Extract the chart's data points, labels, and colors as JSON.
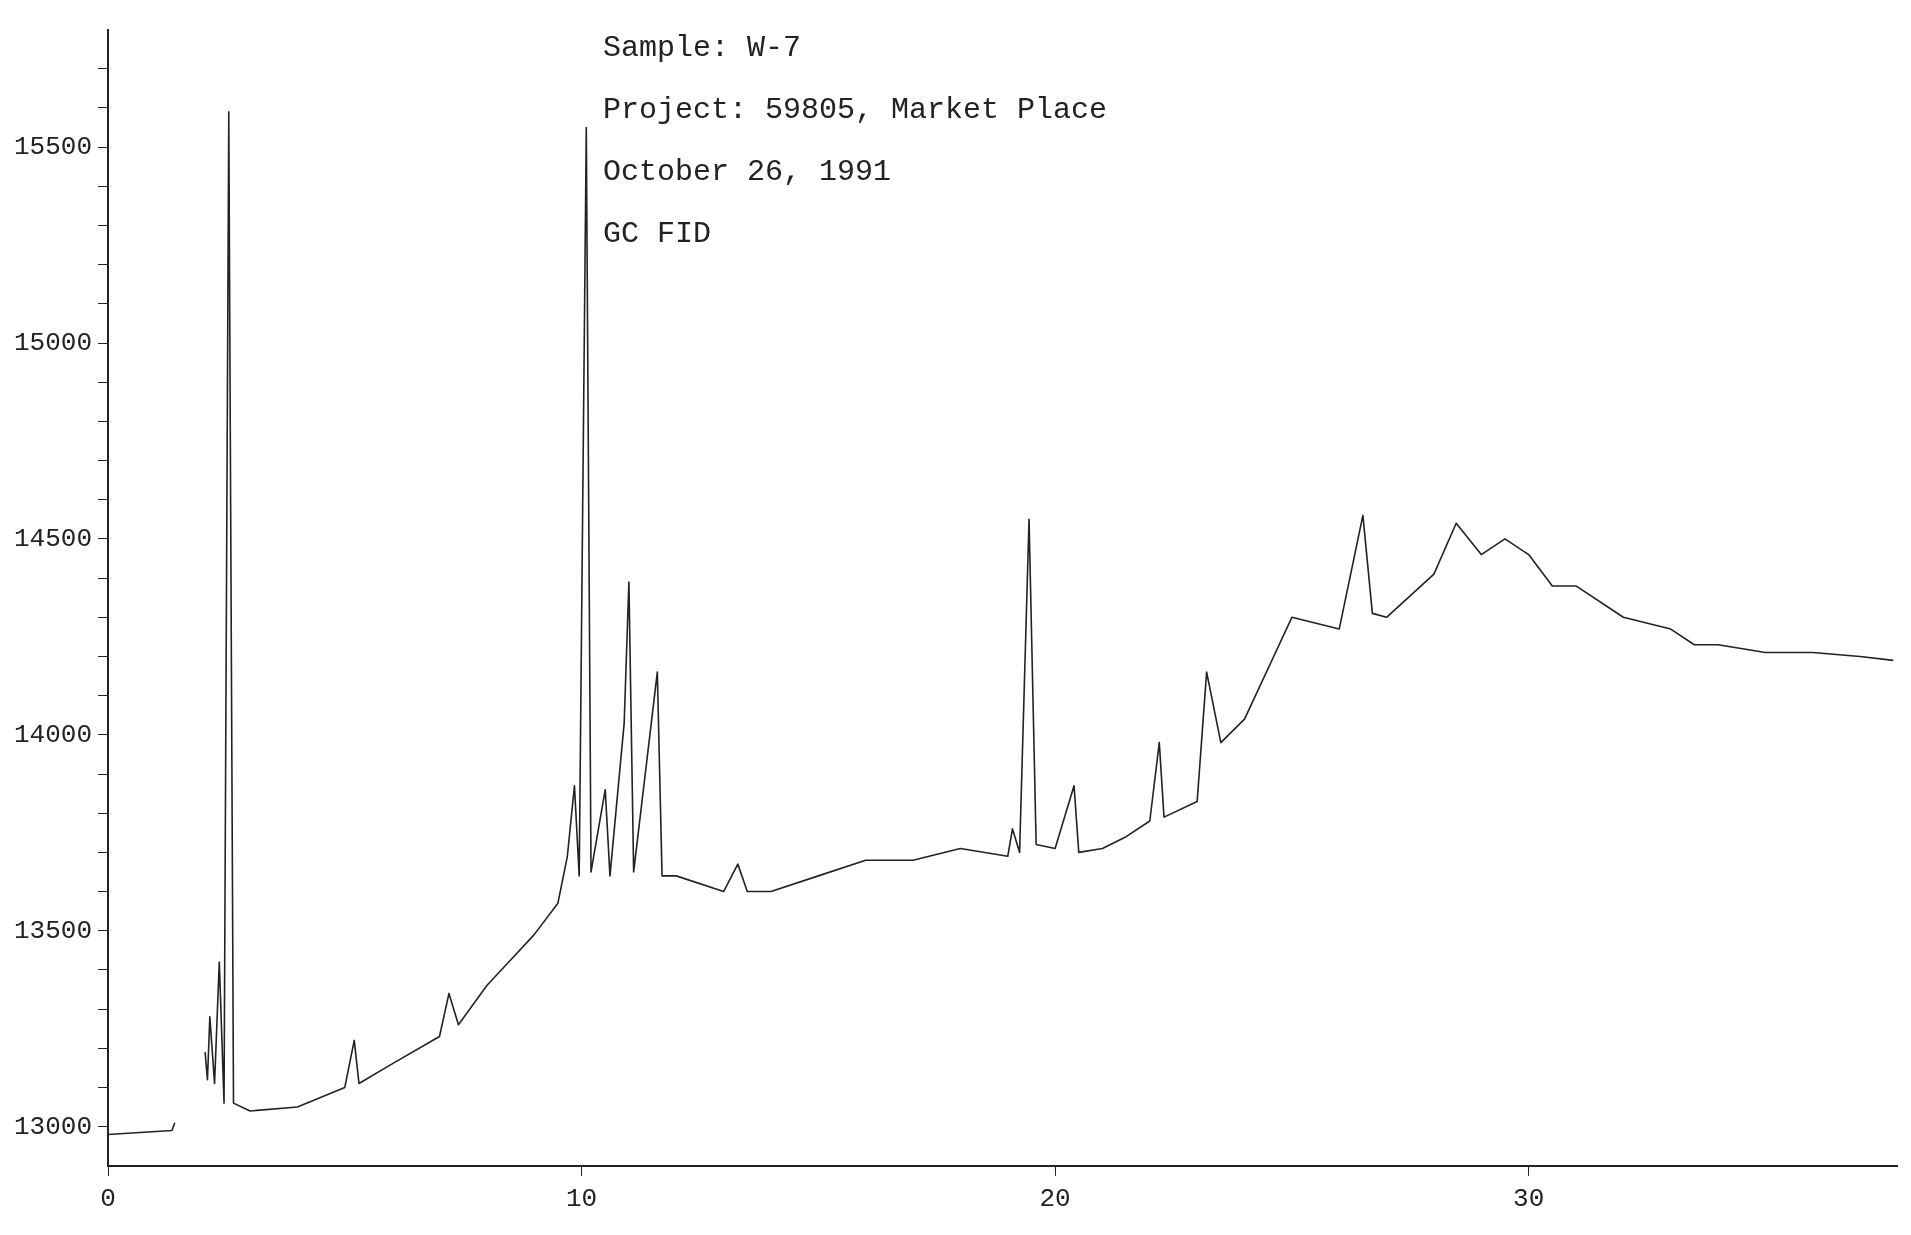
{
  "chart_data": {
    "type": "line",
    "annotations": [
      "Sample: W-7",
      "Project: 59805, Market Place",
      "October 26, 1991",
      "GC FID"
    ],
    "series": [
      {
        "color": "#222222",
        "x": [
          0,
          1.35,
          1.41,
          1.6,
          1.9,
          1.95,
          2.0,
          2.05,
          2.1,
          2.15,
          2.25,
          2.35,
          2.45,
          2.55,
          2.65,
          3,
          4,
          5,
          5.2,
          5.3,
          6,
          7,
          7.2,
          7.4,
          8,
          9,
          9.5,
          9.7,
          9.85,
          9.95,
          10.1,
          10.2,
          10.5,
          10.6,
          10.9,
          11.0,
          11.1,
          11.6,
          11.7,
          12,
          13,
          13.3,
          13.5,
          14,
          15,
          16,
          17,
          18,
          19,
          19.1,
          19.25,
          19.45,
          19.6,
          20,
          20.4,
          20.5,
          21,
          21.5,
          22,
          22.2,
          22.3,
          23,
          23.2,
          23.5,
          24,
          25,
          26,
          26.5,
          26.7,
          27,
          28,
          28.47,
          29,
          29.5,
          30,
          30.5,
          31,
          32,
          33,
          33.5,
          34,
          35,
          36,
          37,
          37.7
        ],
        "values": [
          12980,
          12990,
          13010,
          null,
          null,
          null,
          null,
          13190,
          13120,
          13280,
          13110,
          13420,
          13060,
          15590,
          13060,
          13040,
          13050,
          13100,
          13220,
          13110,
          13160,
          13230,
          13340,
          13260,
          13360,
          13490,
          13570,
          13690,
          13870,
          13640,
          15550,
          13650,
          13860,
          13640,
          14030,
          14390,
          13650,
          14160,
          13640,
          13640,
          13600,
          13670,
          13600,
          13600,
          13640,
          13680,
          13680,
          13710,
          13690,
          13760,
          13700,
          14550,
          13720,
          13710,
          13870,
          13700,
          13710,
          13740,
          13780,
          13980,
          13790,
          13830,
          14160,
          13980,
          14040,
          14300,
          14270,
          14560,
          14310,
          14300,
          14410,
          14540,
          14460,
          14500,
          14460,
          14380,
          14380,
          14300,
          14270,
          14230,
          14230,
          14210,
          14210,
          14200,
          14190
        ]
      }
    ],
    "xlim": [
      0,
      37.8
    ],
    "xticks": [
      0,
      10,
      20,
      30
    ],
    "ylim": [
      12900,
      15800
    ],
    "yticks": [
      13000,
      {
        "value": 13100,
        "label": null
      },
      {
        "value": 13200,
        "label": null
      },
      {
        "value": 13300,
        "label": null
      },
      {
        "value": 13400,
        "label": null
      },
      13500,
      {
        "value": 13600,
        "label": null
      },
      {
        "value": 13700,
        "label": null
      },
      {
        "value": 13800,
        "label": null
      },
      {
        "value": 13900,
        "label": null
      },
      14000,
      {
        "value": 14100,
        "label": null
      },
      {
        "value": 14200,
        "label": null
      },
      {
        "value": 14300,
        "label": null
      },
      {
        "value": 14400,
        "label": null
      },
      14500,
      {
        "value": 14600,
        "label": null
      },
      {
        "value": 14700,
        "label": null
      },
      {
        "value": 14800,
        "label": null
      },
      {
        "value": 14900,
        "label": null
      },
      15000,
      {
        "value": 15100,
        "label": null
      },
      {
        "value": 15200,
        "label": null
      },
      {
        "value": 15300,
        "label": null
      },
      {
        "value": 15400,
        "label": null
      },
      15500,
      {
        "value": 15600,
        "label": null
      },
      {
        "value": 15700,
        "label": null
      }
    ],
    "grid": false,
    "legend": false,
    "marker": "none",
    "line_style": "solid"
  }
}
